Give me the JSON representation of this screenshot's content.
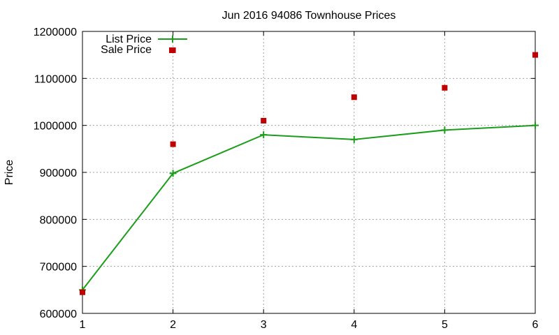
{
  "chart_data": {
    "type": "line",
    "title": "Jun 2016 94086 Townhouse Prices",
    "xlabel": "",
    "ylabel": "Price",
    "x": [
      1,
      2,
      3,
      4,
      5,
      6
    ],
    "xlim": [
      1,
      6
    ],
    "ylim": [
      600000,
      1200000
    ],
    "x_ticks": [
      1,
      2,
      3,
      4,
      5,
      6
    ],
    "y_ticks": [
      600000,
      700000,
      800000,
      900000,
      1000000,
      1100000,
      1200000
    ],
    "x_tick_labels": [
      "1",
      "2",
      "3",
      "4",
      "5",
      "6"
    ],
    "y_tick_labels": [
      "600000",
      "700000",
      "800000",
      "900000",
      "1000000",
      "1100000",
      "1200000"
    ],
    "grid": true,
    "legend_position": "top-left",
    "series": [
      {
        "name": "List Price",
        "style": "line-with-plus-markers",
        "color": "#1a9e1a",
        "values": [
          650000,
          898000,
          980000,
          970000,
          990000,
          1000000
        ]
      },
      {
        "name": "Sale Price",
        "style": "square-markers",
        "color": "#c00000",
        "points": [
          {
            "x": 1,
            "y": 645000
          },
          {
            "x": 2,
            "y": 960000
          },
          {
            "x": 2,
            "y": 1160000
          },
          {
            "x": 3,
            "y": 1010000
          },
          {
            "x": 4,
            "y": 1060000
          },
          {
            "x": 5,
            "y": 1080000
          },
          {
            "x": 6,
            "y": 1150000
          }
        ]
      }
    ]
  }
}
